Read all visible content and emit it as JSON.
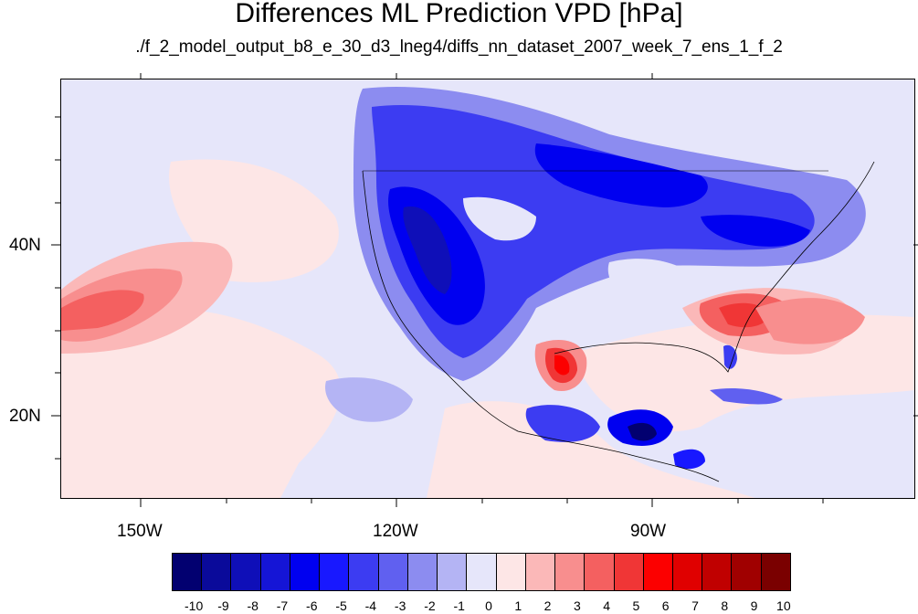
{
  "title": "Differences ML Prediction VPD [hPa]",
  "subtitle": "./f_2_model_output_b8_e_30_d3_lneg4/diffs_nn_dataset_2007_week_7_ens_1_f_2",
  "lat_labels": [
    "40N",
    "20N"
  ],
  "lon_labels": [
    "150W",
    "120W",
    "90W"
  ],
  "colorbar": {
    "labels": [
      "-10",
      "-9",
      "-8",
      "-7",
      "-6",
      "-5",
      "-4",
      "-3",
      "-2",
      "-1",
      "0",
      "1",
      "2",
      "3",
      "4",
      "5",
      "6",
      "7",
      "8",
      "9",
      "10"
    ],
    "colors": [
      "#020070",
      "#0a0a9a",
      "#0f0fb8",
      "#1515d6",
      "#0000f0",
      "#1818ff",
      "#3c3cf2",
      "#6060f0",
      "#8c8cf0",
      "#b4b4f4",
      "#e6e6fa",
      "#fde6e6",
      "#fbb8b8",
      "#f88e8e",
      "#f46060",
      "#f03636",
      "#fc0000",
      "#e00000",
      "#c00000",
      "#a00000",
      "#7a0000"
    ]
  },
  "colors": {
    "neutral_negative": "#e6e6fa",
    "neutral_positive": "#fde6e6",
    "strong_negative": "#0000f0",
    "strong_positive": "#f03636"
  }
}
